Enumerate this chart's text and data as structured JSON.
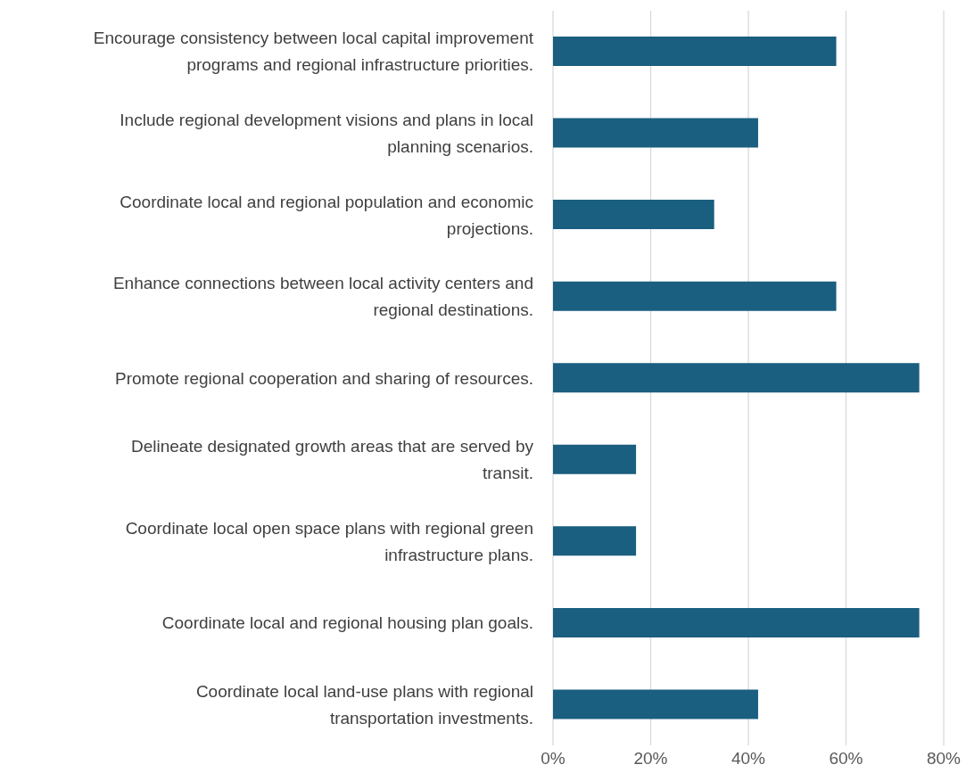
{
  "chart_data": {
    "type": "bar",
    "orientation": "horizontal",
    "categories": [
      "Encourage consistency between local capital improvement programs and regional infrastructure priorities.",
      "Include regional development visions and plans in local planning scenarios.",
      "Coordinate local and regional population and economic projections.",
      "Enhance connections between local activity centers and regional destinations.",
      "Promote regional cooperation and sharing of resources.",
      "Delineate designated growth areas that are served by transit.",
      "Coordinate local open space plans with regional green infrastructure plans.",
      "Coordinate local and regional housing plan goals.",
      "Coordinate local land-use plans with regional transportation investments."
    ],
    "values": [
      58,
      42,
      33,
      58,
      75,
      17,
      17,
      75,
      42
    ],
    "color": "#1a5e80",
    "xlim": [
      0,
      80
    ],
    "xticks": [
      {
        "value": 0,
        "label": "0%"
      },
      {
        "value": 20,
        "label": "20%"
      },
      {
        "value": 40,
        "label": "40%"
      },
      {
        "value": 60,
        "label": "60%"
      },
      {
        "value": 80,
        "label": "80%"
      }
    ],
    "grid": "x"
  }
}
